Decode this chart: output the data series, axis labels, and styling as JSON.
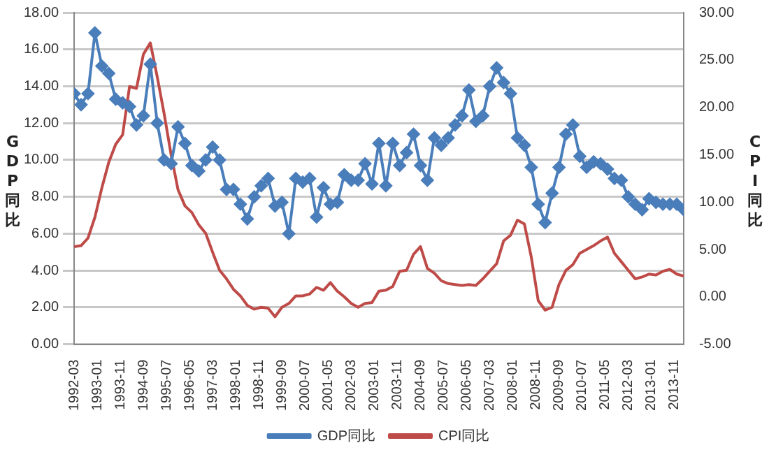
{
  "chart_data": {
    "type": "line",
    "ylabel": "GDP同比",
    "y2label": "CPI同比",
    "x": [
      "1992-03",
      "1992-06",
      "1992-09",
      "1992-12",
      "1993-03",
      "1993-06",
      "1993-09",
      "1993-12",
      "1994-03",
      "1994-06",
      "1994-09",
      "1994-12",
      "1995-03",
      "1995-06",
      "1995-09",
      "1995-12",
      "1996-03",
      "1996-06",
      "1996-09",
      "1996-12",
      "1997-03",
      "1997-06",
      "1997-09",
      "1997-12",
      "1998-03",
      "1998-06",
      "1998-09",
      "1998-12",
      "1999-03",
      "1999-06",
      "1999-09",
      "1999-12",
      "2000-03",
      "2000-06",
      "2000-09",
      "2000-12",
      "2001-03",
      "2001-06",
      "2001-09",
      "2001-12",
      "2002-03",
      "2002-06",
      "2002-09",
      "2002-12",
      "2003-03",
      "2003-06",
      "2003-09",
      "2003-12",
      "2004-03",
      "2004-06",
      "2004-09",
      "2004-12",
      "2005-03",
      "2005-06",
      "2005-09",
      "2005-12",
      "2006-03",
      "2006-06",
      "2006-09",
      "2006-12",
      "2007-03",
      "2007-06",
      "2007-09",
      "2007-12",
      "2008-03",
      "2008-06",
      "2008-09",
      "2008-12",
      "2009-03",
      "2009-06",
      "2009-09",
      "2009-12",
      "2010-03",
      "2010-06",
      "2010-09",
      "2010-12",
      "2011-03",
      "2011-06",
      "2011-09",
      "2011-12",
      "2012-03",
      "2012-06",
      "2012-09",
      "2012-12",
      "2013-03",
      "2013-06",
      "2013-09",
      "2013-12",
      "2014-03"
    ],
    "series": [
      {
        "name": "GDP同比",
        "color": "#4a7ebb",
        "marker": "diamond",
        "axis": "y",
        "values": [
          13.6,
          13.0,
          13.6,
          16.9,
          15.1,
          14.7,
          13.3,
          13.1,
          12.9,
          11.9,
          12.4,
          15.2,
          12.0,
          10.0,
          9.8,
          11.8,
          10.9,
          9.7,
          9.4,
          10.0,
          10.7,
          10.0,
          8.4,
          8.4,
          7.6,
          6.8,
          8.0,
          8.6,
          9.0,
          7.5,
          7.7,
          6.0,
          9.0,
          8.8,
          9.0,
          6.9,
          8.5,
          7.6,
          7.7,
          9.2,
          8.9,
          8.9,
          9.8,
          8.7,
          10.9,
          8.6,
          10.9,
          9.7,
          10.4,
          11.4,
          9.7,
          8.9,
          11.2,
          10.8,
          11.2,
          11.9,
          12.4,
          13.8,
          12.1,
          12.4,
          14.0,
          15.0,
          14.2,
          13.6,
          11.2,
          10.8,
          9.6,
          7.6,
          6.6,
          8.2,
          9.6,
          11.4,
          11.9,
          10.2,
          9.6,
          9.9,
          9.8,
          9.5,
          9.0,
          8.9,
          8.0,
          7.6,
          7.3,
          7.9,
          7.7,
          7.6,
          7.6,
          7.6,
          7.3
        ]
      },
      {
        "name": "CPI同比",
        "color": "#be4b48",
        "marker": "none",
        "axis": "y2",
        "values": [
          5.3,
          5.4,
          6.2,
          8.4,
          11.5,
          14.2,
          16.1,
          17.1,
          22.2,
          22.0,
          25.6,
          26.8,
          23.2,
          19.3,
          15.0,
          11.3,
          9.6,
          8.9,
          7.6,
          6.7,
          4.7,
          2.8,
          1.9,
          0.8,
          0.1,
          -0.9,
          -1.3,
          -1.1,
          -1.2,
          -2.1,
          -1.1,
          -0.7,
          0.1,
          0.1,
          0.3,
          1.0,
          0.7,
          1.5,
          0.6,
          0.0,
          -0.7,
          -1.1,
          -0.7,
          -0.6,
          0.6,
          0.7,
          1.1,
          2.7,
          2.8,
          4.5,
          5.3,
          3.0,
          2.5,
          1.7,
          1.4,
          1.3,
          1.2,
          1.3,
          1.2,
          1.9,
          2.7,
          3.5,
          5.9,
          6.5,
          8.1,
          7.7,
          4.2,
          -0.4,
          -1.4,
          -1.1,
          1.3,
          2.8,
          3.4,
          4.6,
          5.0,
          5.4,
          5.9,
          6.3,
          4.6,
          3.7,
          2.8,
          1.9,
          2.1,
          2.4,
          2.3,
          2.7,
          2.9,
          2.4,
          2.2
        ]
      }
    ],
    "xlim": [
      "1992-03",
      "2014-03"
    ],
    "xticks": [
      "1992-03",
      "1993-01",
      "1993-11",
      "1994-09",
      "1995-07",
      "1996-05",
      "1997-03",
      "1998-01",
      "1998-11",
      "1999-09",
      "2000-07",
      "2001-05",
      "2002-03",
      "2003-01",
      "2003-11",
      "2004-09",
      "2005-07",
      "2006-05",
      "2007-03",
      "2008-01",
      "2008-11",
      "2009-09",
      "2010-07",
      "2011-05",
      "2012-03",
      "2013-01",
      "2013-11"
    ],
    "ylim": [
      0,
      18
    ],
    "yticks": [
      {
        "value": 0,
        "label": "0.00"
      },
      {
        "value": 2,
        "label": "2.00"
      },
      {
        "value": 4,
        "label": "4.00"
      },
      {
        "value": 6,
        "label": "6.00"
      },
      {
        "value": 8,
        "label": "8.00"
      },
      {
        "value": 10,
        "label": "10.00"
      },
      {
        "value": 12,
        "label": "12.00"
      },
      {
        "value": 14,
        "label": "14.00"
      },
      {
        "value": 16,
        "label": "16.00"
      },
      {
        "value": 18,
        "label": "18.00"
      }
    ],
    "y2lim": [
      -5,
      30
    ],
    "y2ticks": [
      {
        "value": -5,
        "label": "-5.00"
      },
      {
        "value": 0,
        "label": "0.00"
      },
      {
        "value": 5,
        "label": "5.00"
      },
      {
        "value": 10,
        "label": "10.00"
      },
      {
        "value": 15,
        "label": "15.00"
      },
      {
        "value": 20,
        "label": "20.00"
      },
      {
        "value": 25,
        "label": "25.00"
      },
      {
        "value": 30,
        "label": "30.00"
      }
    ],
    "grid": "y",
    "legend": "bottom"
  }
}
